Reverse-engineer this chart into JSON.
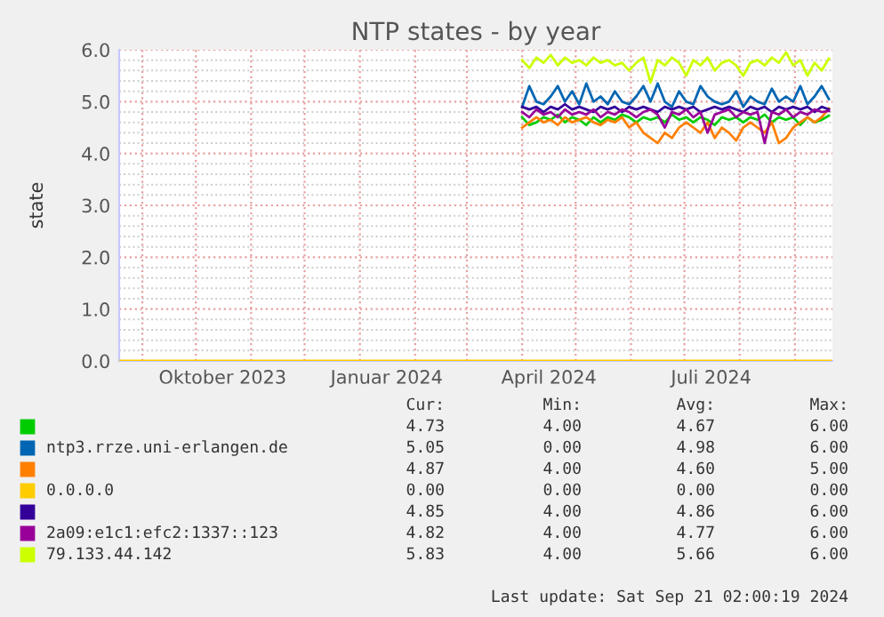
{
  "chart_data": {
    "type": "line",
    "title": "NTP states - by year",
    "ylabel": "state",
    "xlim": [
      "2023-08-19",
      "2024-09-22"
    ],
    "ylim": [
      0,
      6
    ],
    "xticks": [
      {
        "value": "2023-10-16",
        "label": "Oktober 2023"
      },
      {
        "value": "2024-01-16",
        "label": "Januar 2024"
      },
      {
        "value": "2024-04-16",
        "label": "April 2024"
      },
      {
        "value": "2024-07-16",
        "label": "Juli 2024"
      }
    ],
    "yticks": [
      {
        "value": 0,
        "label": "0.0"
      },
      {
        "value": 1,
        "label": "1.0"
      },
      {
        "value": 2,
        "label": "2.0"
      },
      {
        "value": 3,
        "label": "3.0"
      },
      {
        "value": 4,
        "label": "4.0"
      },
      {
        "value": 5,
        "label": "5.0"
      },
      {
        "value": 6,
        "label": "6.0"
      }
    ],
    "grid": true,
    "legend": "bottom",
    "x": [
      "2024-04-01",
      "2024-04-05",
      "2024-04-09",
      "2024-04-13",
      "2024-04-17",
      "2024-04-21",
      "2024-04-25",
      "2024-04-29",
      "2024-05-03",
      "2024-05-07",
      "2024-05-11",
      "2024-05-15",
      "2024-05-19",
      "2024-05-23",
      "2024-05-27",
      "2024-05-31",
      "2024-06-04",
      "2024-06-08",
      "2024-06-12",
      "2024-06-16",
      "2024-06-20",
      "2024-06-24",
      "2024-06-28",
      "2024-07-02",
      "2024-07-06",
      "2024-07-10",
      "2024-07-14",
      "2024-07-18",
      "2024-07-22",
      "2024-07-26",
      "2024-07-30",
      "2024-08-03",
      "2024-08-07",
      "2024-08-11",
      "2024-08-15",
      "2024-08-19",
      "2024-08-23",
      "2024-08-27",
      "2024-08-31",
      "2024-09-04",
      "2024-09-08",
      "2024-09-12",
      "2024-09-16",
      "2024-09-20"
    ],
    "series": [
      {
        "color": "#00cc00",
        "values": [
          4.7,
          4.55,
          4.6,
          4.7,
          4.65,
          4.75,
          4.6,
          4.7,
          4.65,
          4.55,
          4.7,
          4.6,
          4.7,
          4.65,
          4.75,
          4.7,
          4.6,
          4.7,
          4.65,
          4.7,
          4.6,
          4.75,
          4.65,
          4.7,
          4.6,
          4.7,
          4.65,
          4.55,
          4.7,
          4.65,
          4.7,
          4.6,
          4.7,
          4.65,
          4.75,
          4.6,
          4.7,
          4.65,
          4.7,
          4.55,
          4.7,
          4.6,
          4.65,
          4.73
        ]
      },
      {
        "name": "ntp3.rrze.uni-erlangen.de",
        "color": "#0066b3",
        "values": [
          4.9,
          5.3,
          5.0,
          4.95,
          5.1,
          5.3,
          5.0,
          5.2,
          4.95,
          5.35,
          5.0,
          5.1,
          4.95,
          5.2,
          5.0,
          4.95,
          5.1,
          5.3,
          5.0,
          5.35,
          5.0,
          4.9,
          5.2,
          5.0,
          4.95,
          5.3,
          5.1,
          5.0,
          4.95,
          5.0,
          5.2,
          4.9,
          5.1,
          5.0,
          4.95,
          5.25,
          5.0,
          5.1,
          5.0,
          5.3,
          4.95,
          5.1,
          5.3,
          5.05
        ]
      },
      {
        "color": "#ff8000",
        "values": [
          4.5,
          4.6,
          4.7,
          4.6,
          4.65,
          4.55,
          4.7,
          4.6,
          4.65,
          4.7,
          4.6,
          4.55,
          4.65,
          4.6,
          4.7,
          4.5,
          4.6,
          4.4,
          4.3,
          4.2,
          4.4,
          4.3,
          4.5,
          4.6,
          4.5,
          4.4,
          4.6,
          4.3,
          4.5,
          4.4,
          4.25,
          4.5,
          4.6,
          4.5,
          4.4,
          4.6,
          4.2,
          4.3,
          4.5,
          4.6,
          4.7,
          4.6,
          4.7,
          4.87
        ]
      },
      {
        "name": "0.0.0.0",
        "color": "#ffcc00",
        "x": [
          "2023-08-19",
          "2024-09-21"
        ],
        "values": [
          0,
          0
        ]
      },
      {
        "color": "#330099",
        "values": [
          4.9,
          4.85,
          4.9,
          4.8,
          4.9,
          4.85,
          4.95,
          4.85,
          4.9,
          4.85,
          4.8,
          4.9,
          4.85,
          4.9,
          4.8,
          4.9,
          4.85,
          4.9,
          4.85,
          4.8,
          4.9,
          4.85,
          4.9,
          4.85,
          4.9,
          4.8,
          4.85,
          4.9,
          4.85,
          4.9,
          4.85,
          4.8,
          4.9,
          4.85,
          4.9,
          4.8,
          4.9,
          4.85,
          4.9,
          4.85,
          4.9,
          4.8,
          4.9,
          4.85
        ]
      },
      {
        "name": "2a09:e1c1:efc2:1337::123",
        "color": "#990099",
        "values": [
          4.8,
          4.7,
          4.85,
          4.75,
          4.8,
          4.7,
          4.85,
          4.75,
          4.8,
          4.75,
          4.85,
          4.7,
          4.8,
          4.75,
          4.85,
          4.8,
          4.7,
          4.8,
          4.85,
          4.75,
          4.5,
          4.8,
          4.75,
          4.85,
          4.7,
          4.8,
          4.4,
          4.75,
          4.8,
          4.85,
          4.7,
          4.8,
          4.75,
          4.8,
          4.2,
          4.8,
          4.75,
          4.85,
          4.7,
          4.8,
          4.75,
          4.85,
          4.8,
          4.82
        ]
      },
      {
        "name": "79.133.44.142",
        "color": "#ccff00",
        "values": [
          5.8,
          5.65,
          5.85,
          5.75,
          5.9,
          5.7,
          5.85,
          5.75,
          5.8,
          5.7,
          5.85,
          5.75,
          5.8,
          5.7,
          5.75,
          5.6,
          5.75,
          5.85,
          5.37,
          5.8,
          5.7,
          5.85,
          5.75,
          5.5,
          5.8,
          5.7,
          5.85,
          5.6,
          5.75,
          5.8,
          5.7,
          5.5,
          5.75,
          5.8,
          5.7,
          5.85,
          5.75,
          5.95,
          5.7,
          5.8,
          5.5,
          5.75,
          5.6,
          5.83
        ]
      }
    ],
    "annotations": [
      "Cur:",
      "Min:",
      "Avg:",
      "Max:",
      "4.73",
      "4.00",
      "4.67",
      "6.00",
      "5.05",
      "0.00",
      "4.98",
      "6.00",
      "4.87",
      "4.00",
      "4.60",
      "5.00",
      "0.00",
      "0.00",
      "0.00",
      "0.00",
      "4.85",
      "4.00",
      "4.86",
      "6.00",
      "4.82",
      "4.00",
      "4.77",
      "6.00",
      "5.83",
      "4.00",
      "5.66",
      "6.00",
      "Last update: Sat Sep 21 02:00:19 2024"
    ]
  }
}
